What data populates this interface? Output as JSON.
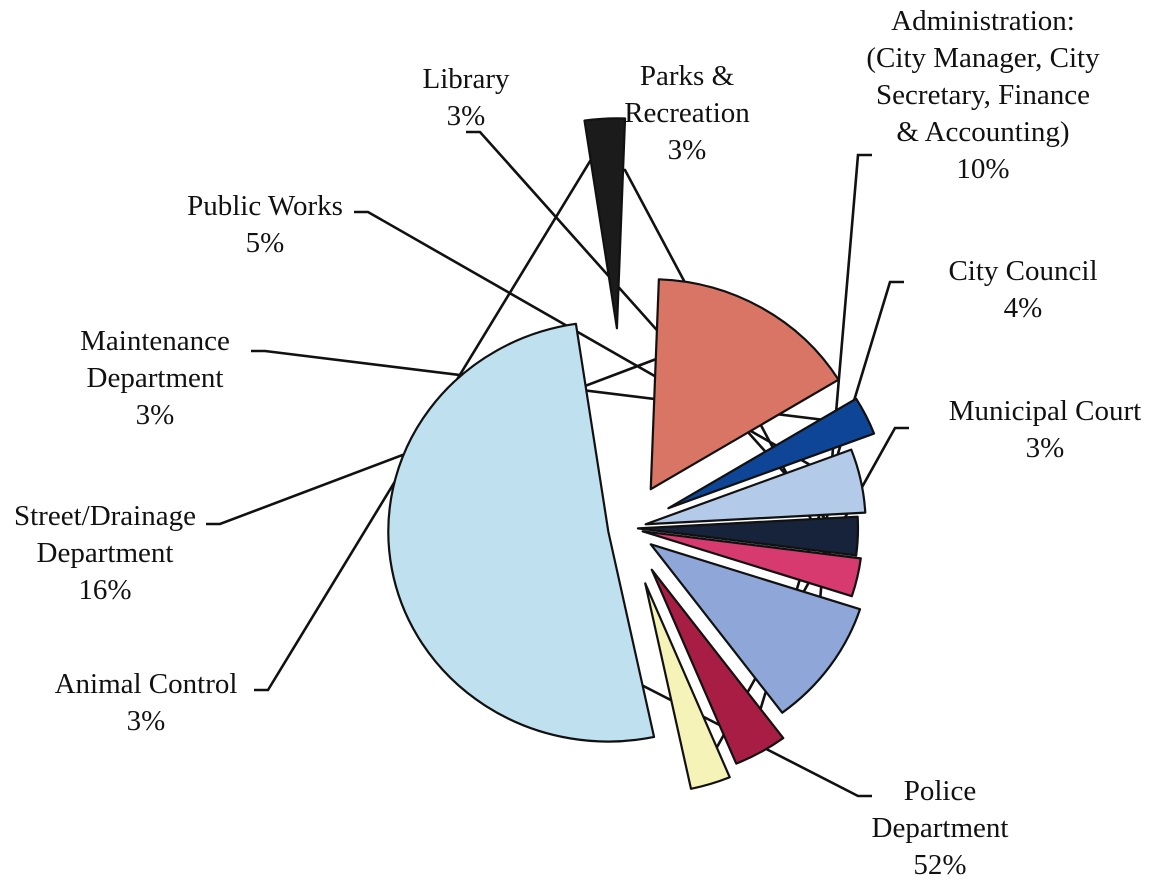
{
  "chart_data": {
    "type": "pie",
    "title": "",
    "exploded": true,
    "slices": [
      {
        "label": "Police Department",
        "label_lines": [
          "Police",
          "Department"
        ],
        "value": 52,
        "value_text": "52%",
        "color": "#bfe0ef"
      },
      {
        "label": "Animal Control",
        "label_lines": [
          "Animal Control"
        ],
        "value": 3,
        "value_text": "3%",
        "color": "#1b1b1b"
      },
      {
        "label": "Street/Drainage Department",
        "label_lines": [
          "Street/Drainage",
          "Department"
        ],
        "value": 16,
        "value_text": "16%",
        "color": "#d87565"
      },
      {
        "label": "Maintenance Department",
        "label_lines": [
          "Maintenance",
          "Department"
        ],
        "value": 3,
        "value_text": "3%",
        "color": "#0e4596"
      },
      {
        "label": "Public Works",
        "label_lines": [
          "Public Works"
        ],
        "value": 5,
        "value_text": "5%",
        "color": "#b3cae8"
      },
      {
        "label": "Library",
        "label_lines": [
          "Library"
        ],
        "value": 3,
        "value_text": "3%",
        "color": "#16233a"
      },
      {
        "label": "Parks & Recreation",
        "label_lines": [
          "Parks &",
          "Recreation"
        ],
        "value": 3,
        "value_text": "3%",
        "color": "#d63a6e"
      },
      {
        "label": "Administration: (City Manager, City Secretary, Finance & Accounting)",
        "label_lines": [
          "Administration:",
          "(City Manager, City",
          "Secretary, Finance",
          "& Accounting)"
        ],
        "value": 10,
        "value_text": "10%",
        "color": "#8fa6d8"
      },
      {
        "label": "City Council",
        "label_lines": [
          "City Council"
        ],
        "value": 4,
        "value_text": "4%",
        "color": "#a81d43"
      },
      {
        "label": "Municipal Court",
        "label_lines": [
          "Municipal Court"
        ],
        "value": 3,
        "value_text": "3%",
        "color": "#f6f3b8"
      }
    ]
  }
}
